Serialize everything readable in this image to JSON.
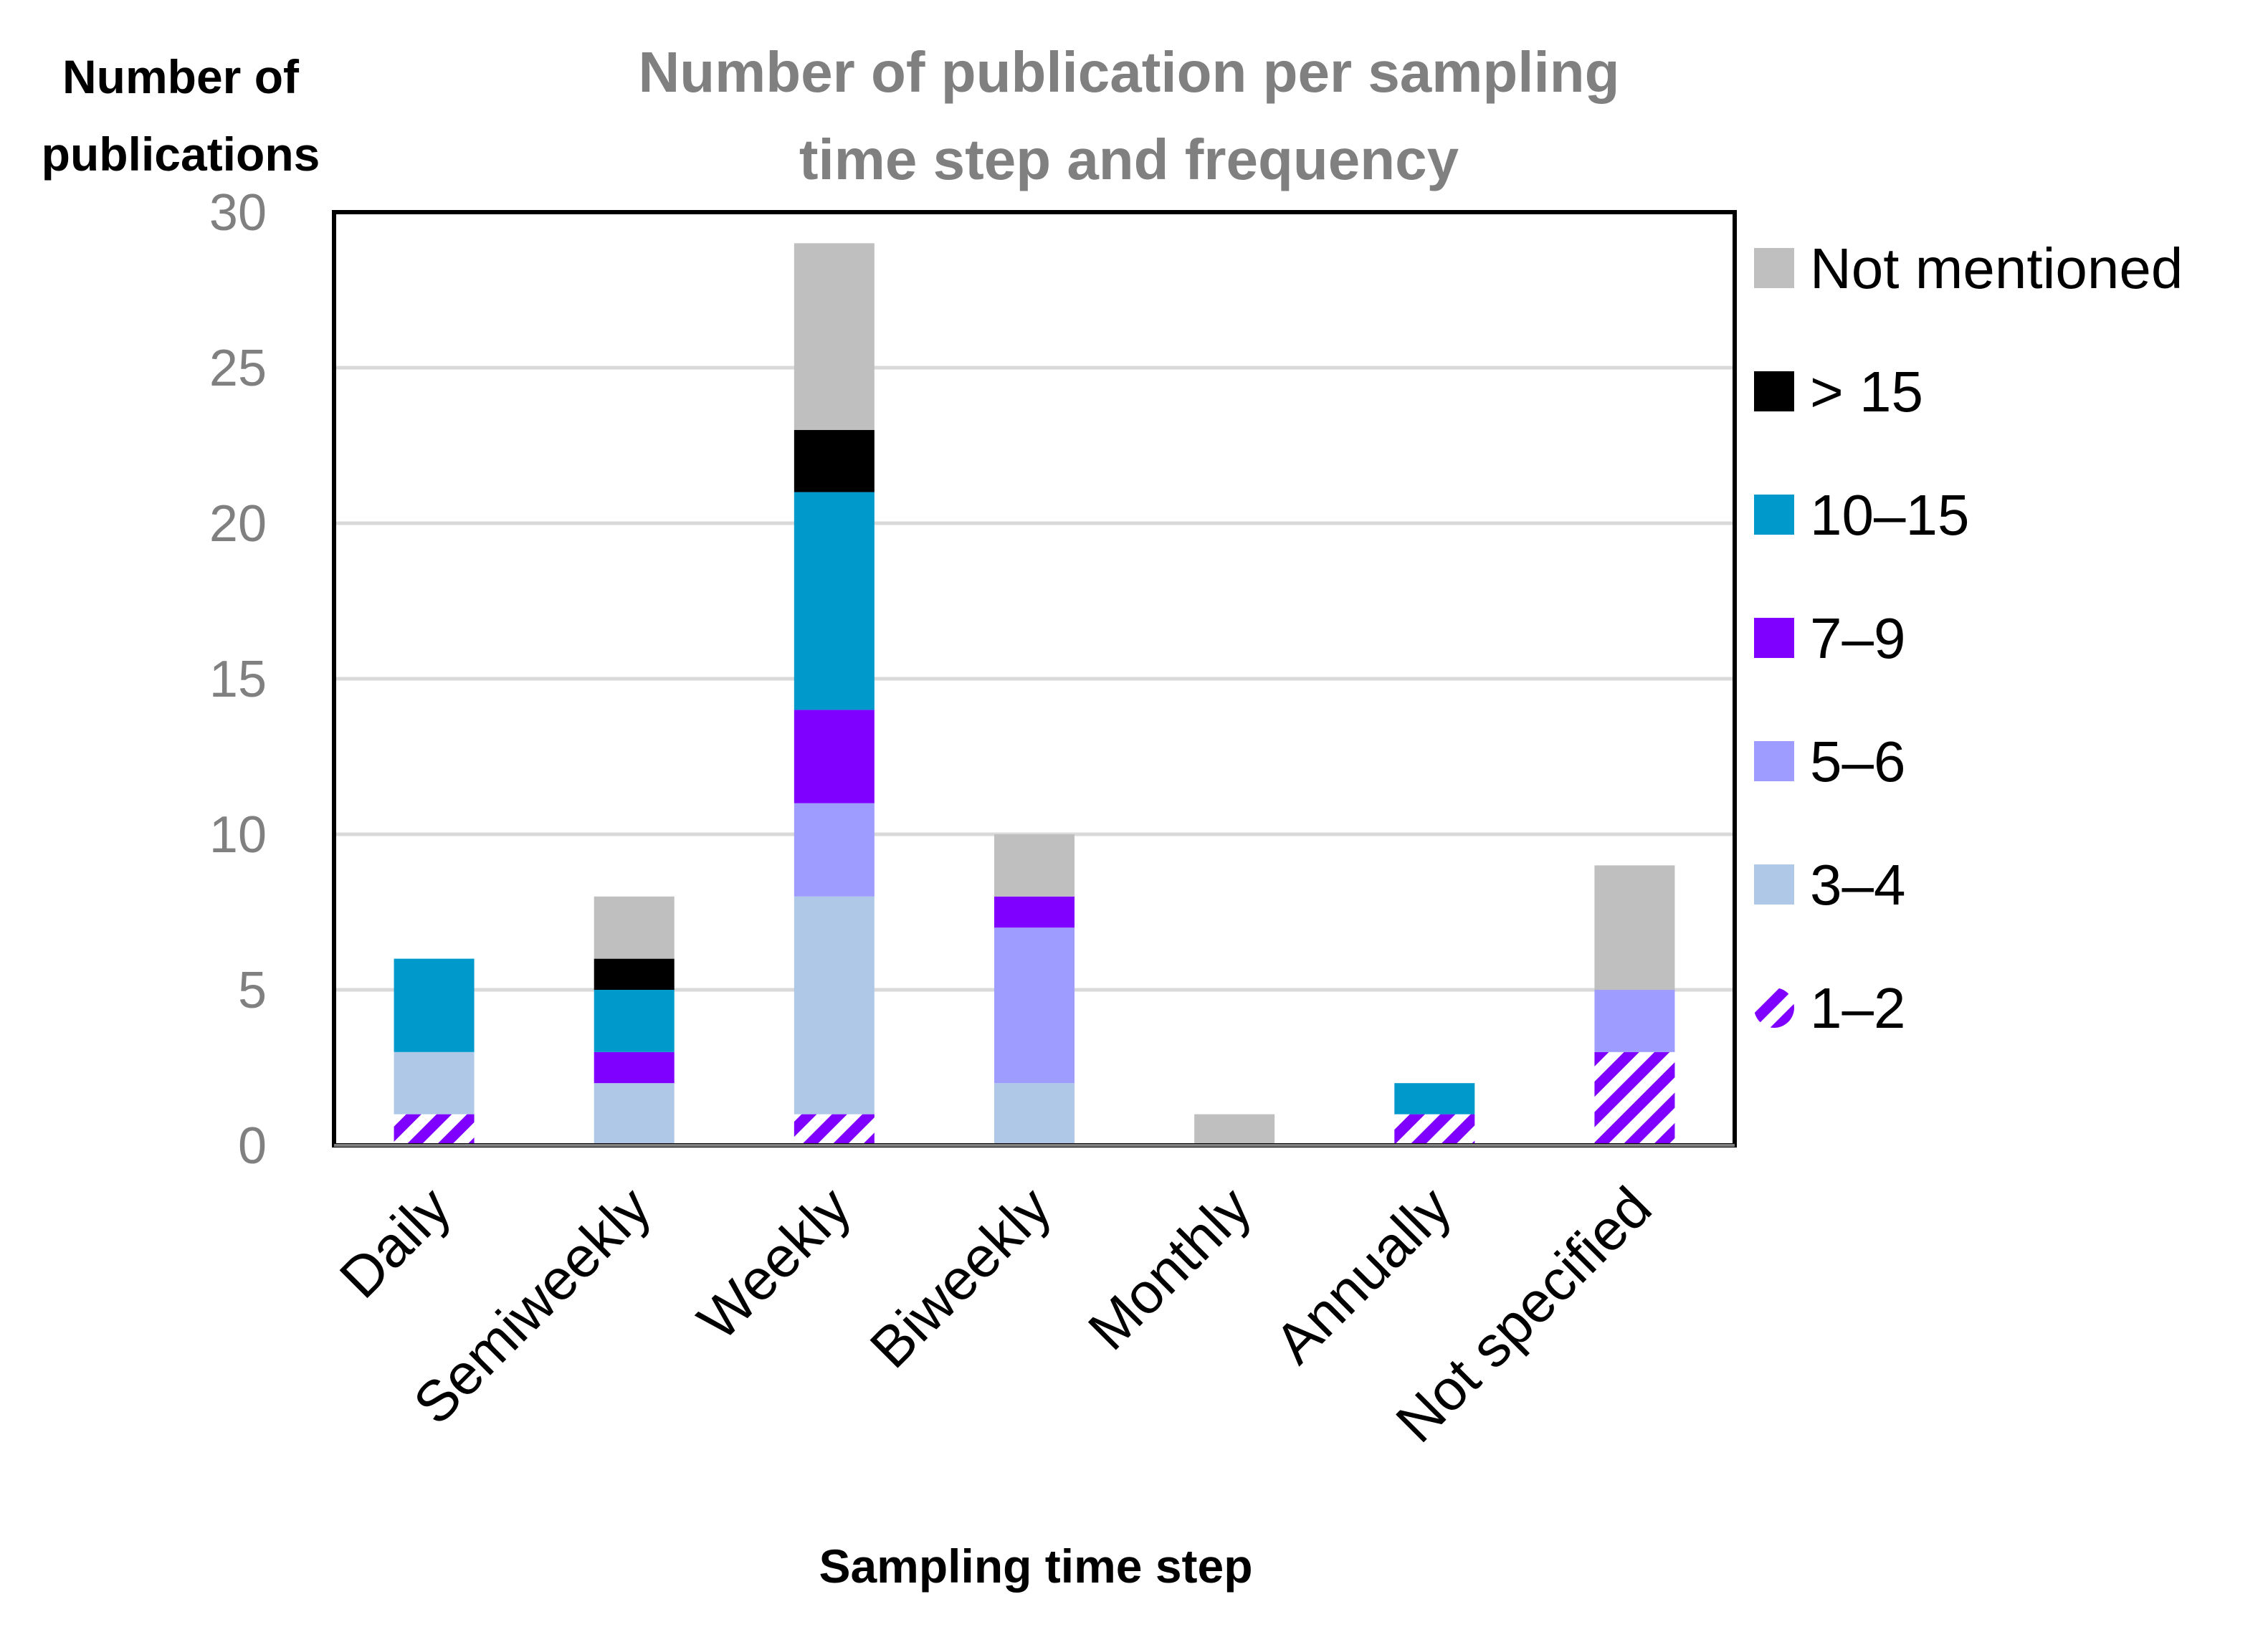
{
  "chart_data": {
    "type": "bar",
    "stacked": true,
    "title": "Number of publication per sampling time step and frequency",
    "title_lines": [
      "Number of publication per sampling",
      "time step and frequency"
    ],
    "ylabel_lines": [
      "Number of",
      "publications"
    ],
    "xlabel": "Sampling time step",
    "ylim": [
      0,
      30
    ],
    "yticks": [
      0,
      5,
      10,
      15,
      20,
      25,
      30
    ],
    "grid": true,
    "legend_position": "right",
    "categories": [
      "Daily",
      "Semiweekly",
      "Weekly",
      "Biweekly",
      "Monthly",
      "Annually",
      "Not specified"
    ],
    "series": [
      {
        "name": "1–2",
        "color": "#7F00FF",
        "pattern": "hatch",
        "values": [
          1,
          0,
          1,
          0,
          0,
          1,
          3
        ]
      },
      {
        "name": "3–4",
        "color": "#AFC8E8",
        "values": [
          2,
          2,
          7,
          2,
          0,
          0,
          0
        ]
      },
      {
        "name": "5–6",
        "color": "#9E9CFE",
        "values": [
          0,
          0,
          3,
          5,
          0,
          0,
          2
        ]
      },
      {
        "name": "7–9",
        "color": "#7F00FF",
        "values": [
          0,
          1,
          3,
          1,
          0,
          0,
          0
        ]
      },
      {
        "name": "10–15",
        "color": "#0099CC",
        "values": [
          3,
          2,
          7,
          0,
          0,
          1,
          0
        ]
      },
      {
        "name": "> 15",
        "color": "#000000",
        "values": [
          0,
          1,
          2,
          0,
          0,
          0,
          0
        ]
      },
      {
        "name": "Not mentioned",
        "color": "#BFBFBF",
        "values": [
          0,
          2,
          6,
          2,
          1,
          0,
          4
        ]
      }
    ]
  }
}
